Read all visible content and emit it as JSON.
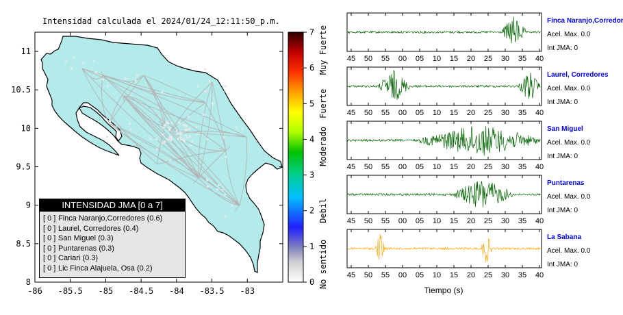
{
  "title": "Intensidad calculada el 2024/01/24_12:11:50_p.m.",
  "map": {
    "x_ticks": [
      "-86",
      "-85.5",
      "-85",
      "-84.5",
      "-84",
      "-83.5",
      "-83"
    ],
    "y_ticks": [
      "11",
      "10.5",
      "10",
      "9.5",
      "9",
      "8.5",
      "8"
    ],
    "land_color": "#b3eaea",
    "ocean_color": "#ffffff"
  },
  "colorbar": {
    "ticks": [
      "0",
      "1",
      "2",
      "3",
      "4",
      "5",
      "6",
      "7"
    ],
    "labels": [
      "No sentido",
      "Debil",
      "Moderado",
      "Fuerte",
      "Muy Fuerte"
    ]
  },
  "legend": {
    "title": "INTENSIDAD JMA [0 a 7]",
    "items": [
      {
        "bracket": "[ 0 ]",
        "text": "Finca Naranjo,Corredores (0.6)"
      },
      {
        "bracket": "[ 0 ]",
        "text": "Laurel, Corredores (0.4)"
      },
      {
        "bracket": "[ 0 ]",
        "text": "San Miguel (0.3)"
      },
      {
        "bracket": "[ 0 ]",
        "text": "Puntarenas (0.3)"
      },
      {
        "bracket": "[ 0 ]",
        "text": "Cariari (0.3)"
      },
      {
        "bracket": "[ 0 ]",
        "text": "Lic Finca Alajuela, Osa (0.2)"
      }
    ]
  },
  "traces": [
    {
      "station": "Finca Naranjo,Corredores",
      "acel": "Acel. Max. 0.0",
      "int": "Int JMA: 0",
      "color": "#006400"
    },
    {
      "station": "Laurel, Corredores",
      "acel": "Acel. Max. 0.0",
      "int": "Int JMA: 0",
      "color": "#006400"
    },
    {
      "station": "San Miguel",
      "acel": "Acel. Max. 0.0",
      "int": "Int JMA: 0",
      "color": "#006400"
    },
    {
      "station": "Puntarenas",
      "acel": "Acel. Max. 0.0",
      "int": "Int JMA: 0",
      "color": "#006400"
    },
    {
      "station": "La Sabana",
      "acel": "Acel. Max. 0.0",
      "int": "Int JMA: 0",
      "color": "#ffa500"
    }
  ],
  "trace_x_ticks": [
    "45",
    "50",
    "55",
    "00",
    "05",
    "10",
    "15",
    "20",
    "25",
    "30",
    "35",
    "40"
  ],
  "trace_xlabel": "Tiempo (s)",
  "station_label_color": "#0000ee",
  "chart_data": [
    {
      "type": "heatmap",
      "title": "Intensidad calculada el 2024/01/24_12:11:50_p.m.",
      "xlim": [
        -86,
        -82.5
      ],
      "ylim": [
        8,
        11.25
      ],
      "colorbar_range": [
        0,
        7
      ],
      "colorbar_labels": [
        "No sentido",
        "Debil",
        "Moderado",
        "Fuerte",
        "Muy Fuerte"
      ],
      "legend": "bottom-left",
      "stations": [
        {
          "name": "Finca Naranjo,Corredores",
          "intensity": 0.6,
          "jma": 0
        },
        {
          "name": "Laurel, Corredores",
          "intensity": 0.4,
          "jma": 0
        },
        {
          "name": "San Miguel",
          "intensity": 0.3,
          "jma": 0
        },
        {
          "name": "Puntarenas",
          "intensity": 0.3,
          "jma": 0
        },
        {
          "name": "Cariari",
          "intensity": 0.3,
          "jma": 0
        },
        {
          "name": "Lic Finca Alajuela, Osa",
          "intensity": 0.2,
          "jma": 0
        }
      ]
    },
    {
      "type": "line",
      "xlabel": "Tiempo (s)",
      "x_tick_labels": [
        "45",
        "50",
        "55",
        "00",
        "05",
        "10",
        "15",
        "20",
        "25",
        "30",
        "35",
        "40"
      ],
      "series": [
        {
          "name": "Finca Naranjo,Corredores",
          "peak_max": 0.0,
          "jma": 0,
          "burst_windows": [
            [
              29,
              36
            ]
          ]
        },
        {
          "name": "Laurel, Corredores",
          "peak_max": 0.0,
          "jma": 0,
          "burst_windows": [
            [
              53,
              62
            ],
            [
              34,
              40
            ]
          ]
        },
        {
          "name": "San Miguel",
          "peak_max": 0.0,
          "jma": 0,
          "burst_windows": [
            [
              5,
              40
            ]
          ]
        },
        {
          "name": "Puntarenas",
          "peak_max": 0.0,
          "jma": 0,
          "burst_windows": [
            [
              15,
              32
            ]
          ]
        },
        {
          "name": "La Sabana",
          "peak_max": 0.0,
          "jma": 0,
          "burst_windows": [
            [
              52,
              55
            ],
            [
              23,
              26
            ]
          ]
        }
      ]
    }
  ]
}
